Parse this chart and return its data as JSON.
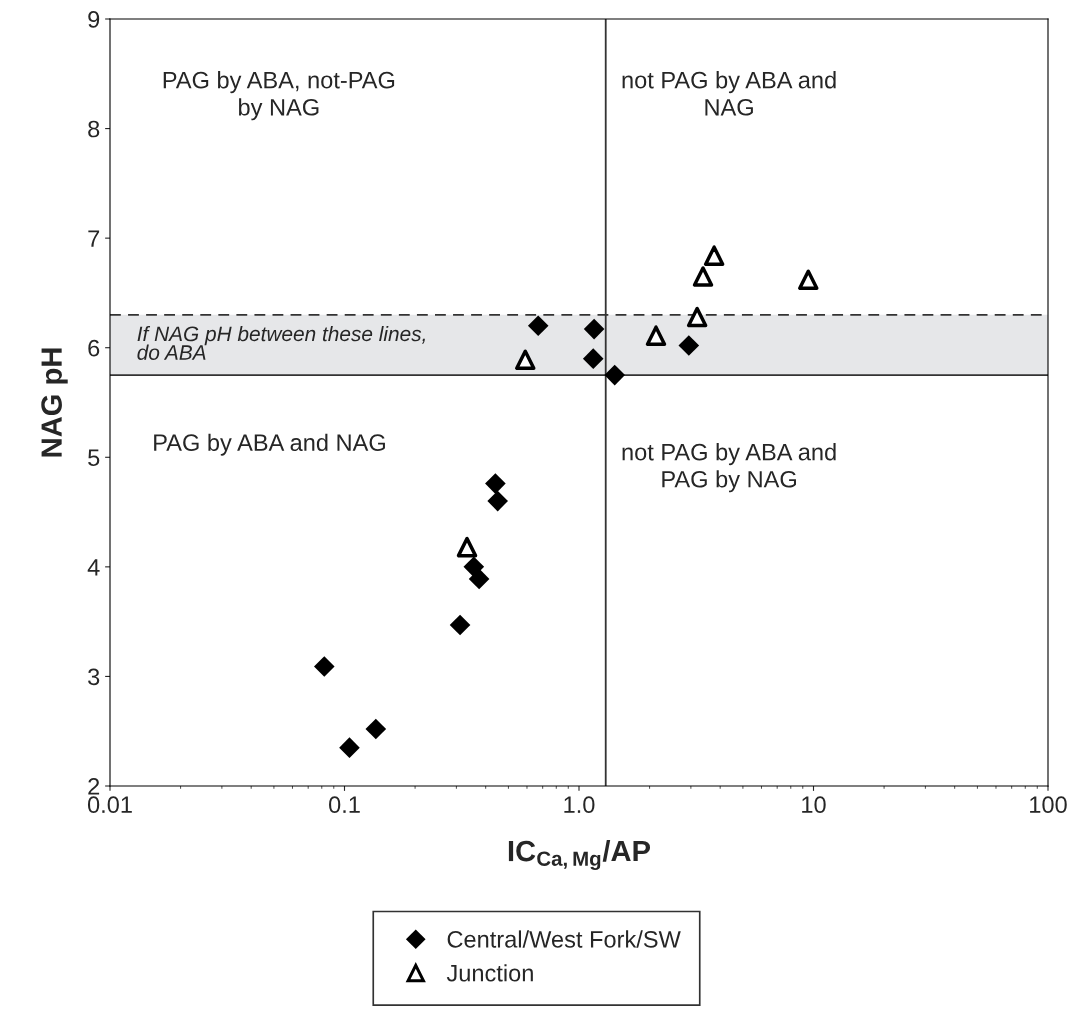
{
  "chart_data": {
    "type": "scatter",
    "xlabel": "IC$_{Ca,Mg}$/AP",
    "ylabel": "NAG pH",
    "log": "x",
    "xlim": [
      0.01,
      100
    ],
    "xticks": [
      0.01,
      0.1,
      {
        "value": 1,
        "label": "1.0"
      },
      10,
      100
    ],
    "ylim": [
      2,
      9
    ],
    "yticks": [
      2,
      3,
      4,
      5,
      6,
      7,
      8,
      9
    ],
    "grid": false,
    "legend": "bottom",
    "series": [
      {
        "name": "Central/West Fork/SW",
        "color": "#000000",
        "marker": "diamond",
        "x": [
          0.67,
          1.16,
          1.15,
          1.42,
          2.94,
          0.44,
          0.45,
          0.356,
          0.375,
          0.311,
          0.082,
          0.105,
          0.136
        ],
        "values": [
          6.2,
          6.17,
          5.9,
          5.75,
          6.02,
          4.76,
          4.6,
          4.0,
          3.89,
          3.47,
          3.09,
          2.35,
          2.52
        ]
      },
      {
        "name": "Junction",
        "color": "#000000",
        "marker": "triangle",
        "x": [
          0.59,
          0.333,
          2.13,
          3.19,
          3.38,
          3.77,
          9.5
        ],
        "values": [
          5.89,
          4.18,
          6.11,
          6.28,
          6.65,
          6.84,
          6.62
        ]
      }
    ],
    "bands": [
      {
        "axis": "y",
        "from": 5.75,
        "to": 6.3,
        "label": "If NAG pH between these lines,\ndo ABA",
        "color": "#e6e7e9"
      }
    ],
    "ref_lines": [
      {
        "axis": "x",
        "value": 1.3,
        "line_style": "solid"
      },
      {
        "axis": "y",
        "value": 5.75,
        "line_style": "solid"
      },
      {
        "axis": "y",
        "value": 6.3,
        "line_style": "dashed"
      }
    ],
    "annotations": [
      "PAG by ABA, not-PAG\nby NAG",
      "not PAG by ABA and\nNAG",
      "PAG by ABA and NAG",
      "not PAG by ABA and\nPAG by NAG"
    ]
  }
}
